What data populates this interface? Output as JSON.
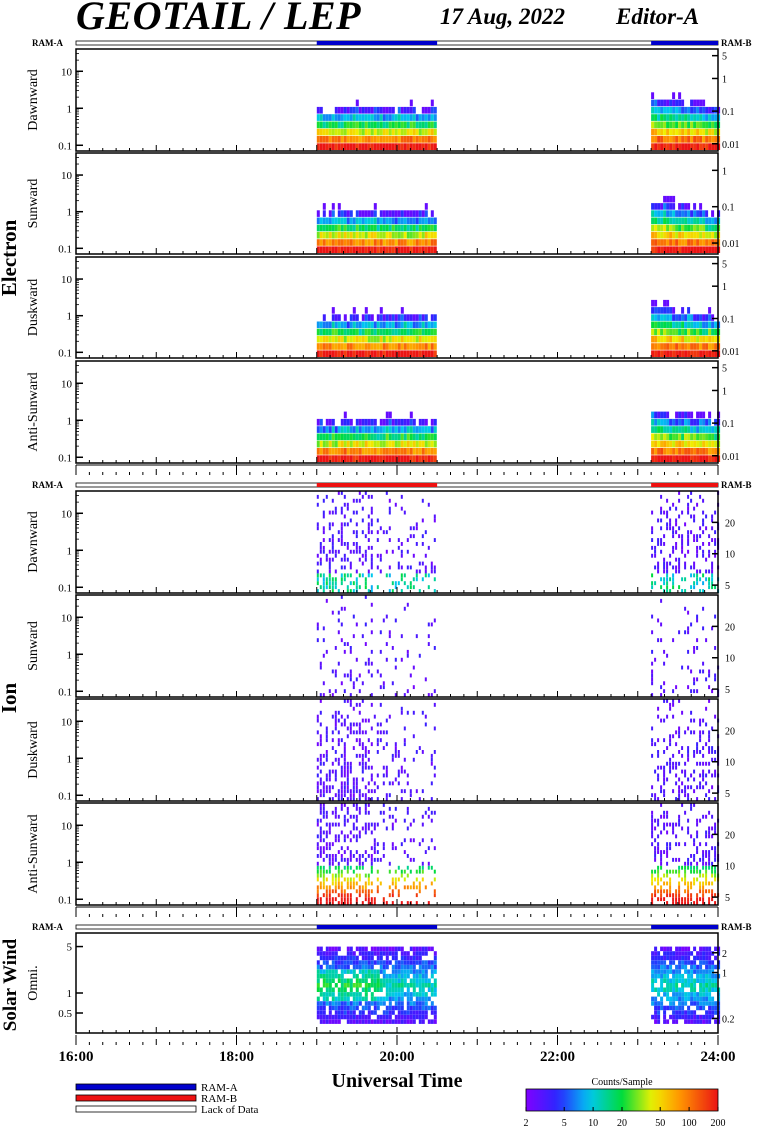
{
  "header": {
    "title": "GEOTAIL / LEP",
    "date": "17 Aug, 2022",
    "editor": "Editor-A"
  },
  "chart_data": {
    "type": "heatmap",
    "xlabel": "Universal Time",
    "xrange_hours": [
      16,
      24
    ],
    "x_tick_labels": [
      "16:00",
      "18:00",
      "20:00",
      "22:00",
      "24:00"
    ],
    "data_intervals": [
      {
        "start": "19:00",
        "end": "20:30",
        "mode": "RAM-A"
      },
      {
        "start": "23:10",
        "end": "24:00",
        "mode": "RAM-B"
      }
    ],
    "ram_label_left": "RAM-A",
    "ram_label_right": "RAM-B",
    "legend": {
      "items": [
        {
          "label": "RAM-A",
          "color": "#0000cc"
        },
        {
          "label": "RAM-B",
          "color": "#ee1111"
        },
        {
          "label": "Lack of Data",
          "color": "#ffffff"
        }
      ]
    },
    "colorbar": {
      "title": "Counts/Sample",
      "tick_labels": [
        "2",
        "5",
        "10",
        "20",
        "50",
        "100",
        "200"
      ],
      "range": [
        2,
        200
      ],
      "scale": "log"
    },
    "groups": [
      {
        "name": "Electron",
        "status_color": "#0000cc",
        "panels": [
          {
            "name": "Dawnward",
            "left_ticks": [
              "10",
              "1",
              "0.1"
            ],
            "right_ticks": [
              "5",
              "1",
              "0.1",
              "0.01"
            ]
          },
          {
            "name": "Sunward",
            "left_ticks": [
              "10",
              "1",
              "0.1"
            ],
            "right_ticks": [
              "1",
              "0.1",
              "0.01"
            ]
          },
          {
            "name": "Duskward",
            "left_ticks": [
              "10",
              "1",
              "0.1"
            ],
            "right_ticks": [
              "5",
              "1",
              "0.1",
              "0.01"
            ]
          },
          {
            "name": "Anti-Sunward",
            "left_ticks": [
              "10",
              "1",
              "0.1"
            ],
            "right_ticks": [
              "5",
              "1",
              "0.1",
              "0.01"
            ]
          }
        ]
      },
      {
        "name": "Ion",
        "status_color": "#ee1111",
        "panels": [
          {
            "name": "Dawnward",
            "left_ticks": [
              "10",
              "1",
              "0.1"
            ],
            "right_ticks": [
              "20",
              "10",
              "5"
            ]
          },
          {
            "name": "Sunward",
            "left_ticks": [
              "10",
              "1",
              "0.1"
            ],
            "right_ticks": [
              "20",
              "10",
              "5"
            ]
          },
          {
            "name": "Duskward",
            "left_ticks": [
              "10",
              "1",
              "0.1"
            ],
            "right_ticks": [
              "20",
              "10",
              "5"
            ]
          },
          {
            "name": "Anti-Sunward",
            "left_ticks": [
              "10",
              "1",
              "0.1"
            ],
            "right_ticks": [
              "20",
              "10",
              "5"
            ]
          }
        ]
      },
      {
        "name": "Solar Wind",
        "status_color": "#0000cc",
        "panels": [
          {
            "name": "Omni.",
            "left_ticks": [
              "5",
              "1",
              "0.5"
            ],
            "right_ticks": [
              "2",
              "1",
              "0.2"
            ]
          }
        ]
      }
    ]
  }
}
